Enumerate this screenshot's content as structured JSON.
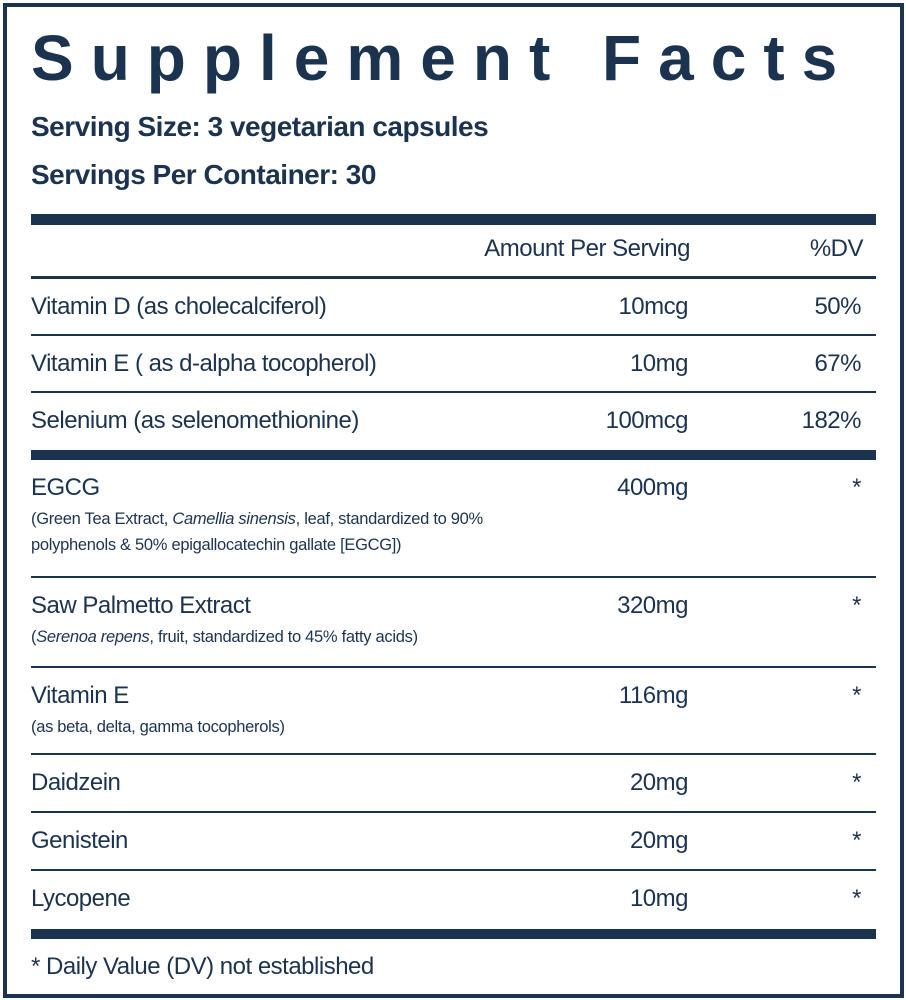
{
  "title": "Supplement Facts",
  "serving_size": "Serving Size: 3 vegetarian capsules",
  "servings_per_container": "Servings Per Container: 30",
  "header": {
    "amount": "Amount Per Serving",
    "dv": "%DV"
  },
  "groups": [
    {
      "rows": [
        {
          "name": "Vitamin D (as cholecalciferol)",
          "amount": "10mcg",
          "dv": "50%"
        },
        {
          "name": "Vitamin E ( as d-alpha tocopherol)",
          "amount": "10mg",
          "dv": "67%"
        },
        {
          "name": "Selenium (as selenomethionine)",
          "amount": "100mcg",
          "dv": "182%"
        }
      ]
    },
    {
      "rows": [
        {
          "name": "EGCG",
          "desc": [
            {
              "text": "(Green Tea Extract, "
            },
            {
              "text": "Camellia sinensis",
              "italic": true
            },
            {
              "text": ", leaf, standardized to 90% polyphenols & 50% epigallocatechin gallate [EGCG])"
            }
          ],
          "amount": "400mg",
          "dv": "*"
        },
        {
          "name": "Saw Palmetto Extract",
          "desc": [
            {
              "text": "("
            },
            {
              "text": "Serenoa repens",
              "italic": true
            },
            {
              "text": ", fruit, standardized to 45% fatty acids)"
            }
          ],
          "amount": "320mg",
          "dv": "*"
        },
        {
          "name": "Vitamin E",
          "desc": [
            {
              "text": "(as beta, delta, gamma tocopherols)"
            }
          ],
          "amount": "116mg",
          "dv": "*"
        },
        {
          "name": "Daidzein",
          "amount": "20mg",
          "dv": "*"
        },
        {
          "name": "Genistein",
          "amount": "20mg",
          "dv": "*"
        },
        {
          "name": "Lycopene",
          "amount": "10mg",
          "dv": "*"
        }
      ]
    }
  ],
  "footnote": "* Daily Value (DV) not established"
}
